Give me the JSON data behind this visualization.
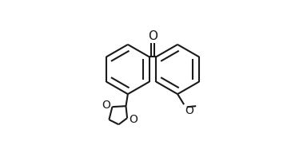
{
  "bg_color": "#ffffff",
  "line_color": "#1a1a1a",
  "line_width": 1.5,
  "dbo": 0.038,
  "font_size": 10,
  "figsize": [
    3.84,
    1.82
  ],
  "dpi": 100,
  "xlim": [
    0.0,
    1.0
  ],
  "ylim": [
    0.05,
    0.95
  ],
  "lbx": 0.34,
  "lby": 0.52,
  "rbx": 0.65,
  "rby": 0.52,
  "r": 0.155
}
